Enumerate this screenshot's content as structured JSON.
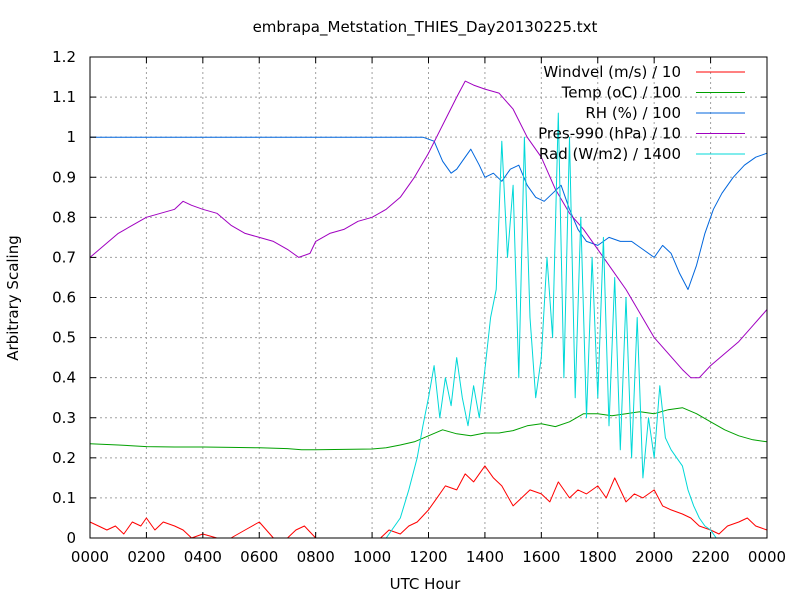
{
  "chart_data": {
    "type": "line",
    "title": "embrapa_Metstation_THIES_Day20130225.txt",
    "xlabel": "UTC Hour",
    "ylabel": "Arbitrary Scaling",
    "xlim": [
      0,
      24
    ],
    "ylim": [
      0,
      1.2
    ],
    "grid": true,
    "legend_position": "top-right",
    "x_ticks": [
      {
        "v": 0,
        "label": "0000"
      },
      {
        "v": 2,
        "label": "0200"
      },
      {
        "v": 4,
        "label": "0400"
      },
      {
        "v": 6,
        "label": "0600"
      },
      {
        "v": 8,
        "label": "0800"
      },
      {
        "v": 10,
        "label": "1000"
      },
      {
        "v": 12,
        "label": "1200"
      },
      {
        "v": 14,
        "label": "1400"
      },
      {
        "v": 16,
        "label": "1600"
      },
      {
        "v": 18,
        "label": "1800"
      },
      {
        "v": 20,
        "label": "2000"
      },
      {
        "v": 22,
        "label": "2200"
      },
      {
        "v": 24,
        "label": "0000"
      }
    ],
    "y_ticks": [
      {
        "v": 0,
        "label": "0"
      },
      {
        "v": 0.1,
        "label": "0.1"
      },
      {
        "v": 0.2,
        "label": "0.2"
      },
      {
        "v": 0.3,
        "label": "0.3"
      },
      {
        "v": 0.4,
        "label": "0.4"
      },
      {
        "v": 0.5,
        "label": "0.5"
      },
      {
        "v": 0.6,
        "label": "0.6"
      },
      {
        "v": 0.7,
        "label": "0.7"
      },
      {
        "v": 0.8,
        "label": "0.8"
      },
      {
        "v": 0.9,
        "label": "0.9"
      },
      {
        "v": 1.0,
        "label": "1"
      },
      {
        "v": 1.1,
        "label": "1.1"
      },
      {
        "v": 1.2,
        "label": "1.2"
      }
    ],
    "series": [
      {
        "name": "Windvel (m/s) / 10",
        "color": "#ff0000",
        "x": [
          0,
          0.3,
          0.6,
          0.9,
          1.2,
          1.5,
          1.8,
          2.0,
          2.3,
          2.6,
          3.0,
          3.3,
          3.6,
          4.0,
          4.5,
          5.0,
          5.5,
          6.0,
          6.5,
          7.0,
          7.3,
          7.6,
          8.0,
          8.5,
          9.0,
          9.5,
          10.0,
          10.3,
          10.6,
          11.0,
          11.3,
          11.6,
          12.0,
          12.3,
          12.6,
          13.0,
          13.3,
          13.6,
          14.0,
          14.3,
          14.6,
          15.0,
          15.3,
          15.6,
          16.0,
          16.3,
          16.6,
          17.0,
          17.3,
          17.6,
          18.0,
          18.3,
          18.6,
          19.0,
          19.3,
          19.6,
          20.0,
          20.3,
          20.6,
          21.0,
          21.3,
          21.6,
          22.0,
          22.3,
          22.6,
          23.0,
          23.3,
          23.6,
          24.0
        ],
        "y": [
          0.04,
          0.03,
          0.02,
          0.03,
          0.01,
          0.04,
          0.03,
          0.05,
          0.02,
          0.04,
          0.03,
          0.02,
          0.0,
          0.01,
          0.0,
          0.0,
          0.02,
          0.04,
          0.0,
          0.0,
          0.02,
          0.03,
          0.0,
          0.0,
          0.0,
          0.0,
          0.0,
          0.0,
          0.02,
          0.01,
          0.03,
          0.04,
          0.07,
          0.1,
          0.13,
          0.12,
          0.16,
          0.14,
          0.18,
          0.15,
          0.13,
          0.08,
          0.1,
          0.12,
          0.11,
          0.09,
          0.14,
          0.1,
          0.12,
          0.11,
          0.13,
          0.1,
          0.15,
          0.09,
          0.11,
          0.1,
          0.12,
          0.08,
          0.07,
          0.06,
          0.05,
          0.03,
          0.02,
          0.01,
          0.03,
          0.04,
          0.05,
          0.03,
          0.02
        ]
      },
      {
        "name": "Temp (oC) / 100",
        "color": "#00a000",
        "x": [
          0,
          1,
          2,
          3,
          4,
          5,
          6,
          7,
          7.5,
          8,
          9,
          10,
          10.5,
          11,
          11.5,
          12,
          12.5,
          13,
          13.5,
          14,
          14.5,
          15,
          15.5,
          16,
          16.5,
          17,
          17.5,
          18,
          18.5,
          19,
          19.5,
          20,
          20.5,
          21,
          21.5,
          22,
          22.5,
          23,
          23.5,
          24
        ],
        "y": [
          0.235,
          0.232,
          0.228,
          0.227,
          0.227,
          0.226,
          0.225,
          0.223,
          0.22,
          0.22,
          0.221,
          0.222,
          0.225,
          0.232,
          0.24,
          0.255,
          0.27,
          0.26,
          0.255,
          0.262,
          0.262,
          0.268,
          0.28,
          0.285,
          0.278,
          0.29,
          0.31,
          0.31,
          0.305,
          0.31,
          0.315,
          0.31,
          0.32,
          0.325,
          0.31,
          0.29,
          0.27,
          0.255,
          0.245,
          0.24
        ]
      },
      {
        "name": "RH (%) / 100",
        "color": "#0066dd",
        "x": [
          0,
          2,
          4,
          6,
          8,
          10,
          11,
          11.8,
          12.2,
          12.5,
          12.8,
          13.0,
          13.2,
          13.5,
          13.8,
          14.0,
          14.3,
          14.6,
          14.9,
          15.2,
          15.5,
          15.8,
          16.1,
          16.4,
          16.7,
          17.0,
          17.3,
          17.6,
          18.0,
          18.4,
          18.8,
          19.2,
          19.6,
          20.0,
          20.3,
          20.6,
          20.9,
          21.2,
          21.5,
          21.8,
          22.1,
          22.4,
          22.8,
          23.2,
          23.6,
          24.0
        ],
        "y": [
          1.0,
          1.0,
          1.0,
          1.0,
          1.0,
          1.0,
          1.0,
          1.0,
          0.99,
          0.94,
          0.91,
          0.92,
          0.94,
          0.97,
          0.93,
          0.9,
          0.91,
          0.89,
          0.92,
          0.93,
          0.88,
          0.85,
          0.84,
          0.86,
          0.88,
          0.82,
          0.77,
          0.74,
          0.73,
          0.75,
          0.74,
          0.74,
          0.72,
          0.7,
          0.73,
          0.71,
          0.66,
          0.62,
          0.68,
          0.76,
          0.82,
          0.86,
          0.9,
          0.93,
          0.95,
          0.96
        ]
      },
      {
        "name": "Pres-990 (hPa) / 10",
        "color": "#a000c0",
        "x": [
          0,
          0.5,
          1,
          1.5,
          2,
          2.5,
          3,
          3.3,
          3.6,
          4,
          4.5,
          5,
          5.5,
          6,
          6.5,
          7,
          7.4,
          7.8,
          8,
          8.5,
          9,
          9.5,
          10,
          10.5,
          11,
          11.5,
          12,
          12.5,
          13,
          13.3,
          13.6,
          14,
          14.5,
          15,
          15.5,
          16,
          16.5,
          17,
          17.5,
          18,
          18.5,
          19,
          19.5,
          20,
          20.5,
          21,
          21.3,
          21.6,
          22,
          22.5,
          23,
          23.5,
          24
        ],
        "y": [
          0.7,
          0.73,
          0.76,
          0.78,
          0.8,
          0.81,
          0.82,
          0.84,
          0.83,
          0.82,
          0.81,
          0.78,
          0.76,
          0.75,
          0.74,
          0.72,
          0.7,
          0.71,
          0.74,
          0.76,
          0.77,
          0.79,
          0.8,
          0.82,
          0.85,
          0.9,
          0.96,
          1.03,
          1.1,
          1.14,
          1.13,
          1.12,
          1.11,
          1.07,
          1.0,
          0.95,
          0.87,
          0.81,
          0.77,
          0.72,
          0.67,
          0.62,
          0.56,
          0.5,
          0.46,
          0.42,
          0.4,
          0.4,
          0.43,
          0.46,
          0.49,
          0.53,
          0.57
        ]
      },
      {
        "name": "Rad (W/m2) / 1400",
        "color": "#00d8d8",
        "x": [
          0,
          2,
          4,
          6,
          8,
          10,
          10.5,
          11.0,
          11.3,
          11.6,
          11.8,
          12.0,
          12.2,
          12.4,
          12.6,
          12.8,
          13.0,
          13.2,
          13.4,
          13.6,
          13.8,
          14.0,
          14.2,
          14.4,
          14.6,
          14.8,
          15.0,
          15.2,
          15.4,
          15.6,
          15.8,
          16.0,
          16.2,
          16.4,
          16.6,
          16.8,
          17.0,
          17.2,
          17.4,
          17.6,
          17.8,
          18.0,
          18.2,
          18.4,
          18.6,
          18.8,
          19.0,
          19.2,
          19.4,
          19.6,
          19.8,
          20.0,
          20.2,
          20.4,
          20.6,
          20.8,
          21.0,
          21.2,
          21.4,
          21.6,
          21.8,
          22.0,
          22.2,
          23.0,
          24.0
        ],
        "y": [
          0,
          0,
          0,
          0,
          0,
          0,
          0.0,
          0.05,
          0.12,
          0.2,
          0.28,
          0.35,
          0.43,
          0.3,
          0.4,
          0.33,
          0.45,
          0.35,
          0.28,
          0.38,
          0.3,
          0.42,
          0.55,
          0.62,
          0.99,
          0.7,
          0.88,
          0.4,
          1.0,
          0.55,
          0.35,
          0.45,
          0.7,
          0.5,
          1.06,
          0.4,
          1.0,
          0.35,
          0.8,
          0.3,
          0.7,
          0.35,
          0.75,
          0.28,
          0.65,
          0.22,
          0.6,
          0.2,
          0.55,
          0.15,
          0.3,
          0.2,
          0.38,
          0.25,
          0.22,
          0.2,
          0.18,
          0.12,
          0.08,
          0.05,
          0.03,
          0.02,
          0.0,
          0.0,
          0.0
        ]
      }
    ]
  }
}
